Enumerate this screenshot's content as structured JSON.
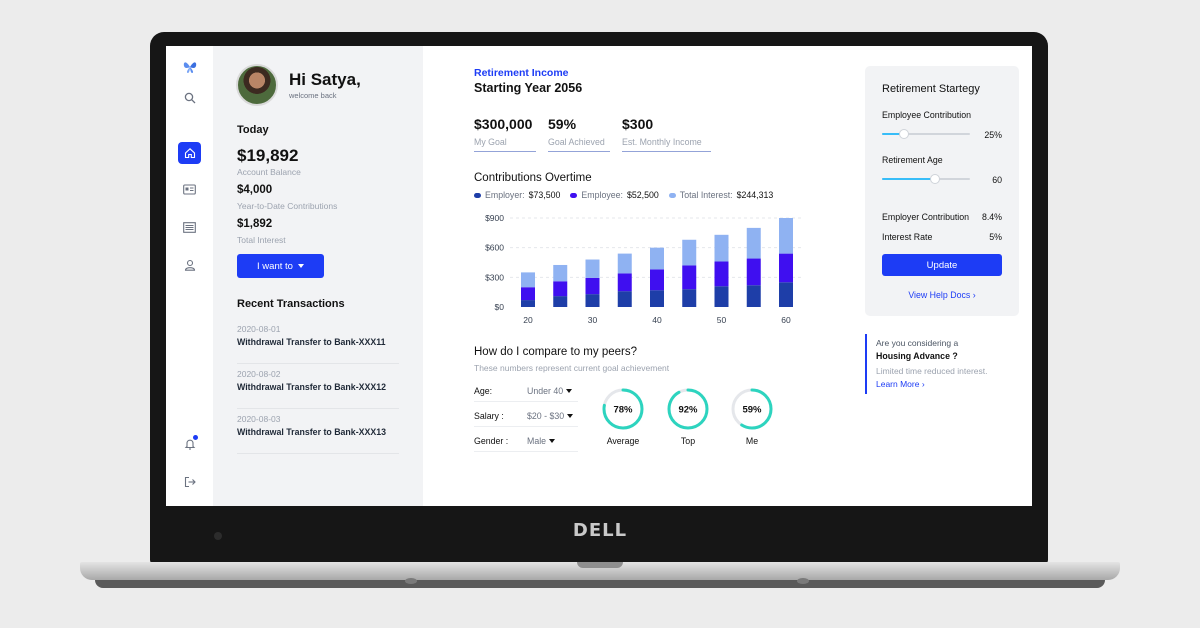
{
  "device": {
    "brand": "DELL"
  },
  "user": {
    "greeting": "Hi Satya,",
    "welcome": "welcome back"
  },
  "today": {
    "heading": "Today",
    "balance": "$19,892",
    "balance_label": "Account Balance",
    "ytd": "$4,000",
    "ytd_label": "Year-to-Date Contributions",
    "interest": "$1,892",
    "interest_label": "Total Interest"
  },
  "actions": {
    "i_want_to": "I want to"
  },
  "transactions": {
    "heading": "Recent Transactions",
    "items": [
      {
        "date": "2020-08-01",
        "desc": "Withdrawal Transfer to Bank-XXX11"
      },
      {
        "date": "2020-08-02",
        "desc": "Withdrawal Transfer to Bank-XXX12"
      },
      {
        "date": "2020-08-03",
        "desc": "Withdrawal Transfer to Bank-XXX13"
      }
    ]
  },
  "retirement": {
    "label": "Retirement Income",
    "starting_year": "Starting Year 2056",
    "stats": [
      {
        "value": "$300,000",
        "label": "My Goal"
      },
      {
        "value": "59%",
        "label": "Goal Achieved"
      },
      {
        "value": "$300",
        "label": "Est. Monthly Income"
      }
    ]
  },
  "contributions": {
    "title": "Contributions Overtime",
    "legend": [
      {
        "name": "Employer:",
        "value": "$73,500"
      },
      {
        "name": "Employee:",
        "value": "$52,500"
      },
      {
        "name": "Total Interest:",
        "value": "$244,313"
      }
    ]
  },
  "chart_data": {
    "type": "bar",
    "stacked": true,
    "x": [
      20,
      25,
      30,
      35,
      40,
      45,
      50,
      55,
      60
    ],
    "x_tick_labels": [
      "20",
      "30",
      "40",
      "50",
      "60"
    ],
    "series": [
      {
        "name": "Employer",
        "values": [
          70,
          110,
          130,
          160,
          170,
          180,
          210,
          220,
          250
        ]
      },
      {
        "name": "Employee",
        "values": [
          130,
          150,
          165,
          180,
          210,
          240,
          250,
          270,
          290
        ]
      },
      {
        "name": "Total Interest",
        "values": [
          150,
          165,
          185,
          200,
          220,
          260,
          270,
          310,
          360
        ]
      }
    ],
    "y_tick_labels": [
      "$0",
      "$300",
      "$600",
      "$900"
    ],
    "ylim": [
      0,
      900
    ],
    "grid": true,
    "colors": [
      "#1e3ea8",
      "#3f0ff0",
      "#8fb2f2"
    ]
  },
  "peers": {
    "title": "How do I compare to my peers?",
    "subtitle": "These numbers represent current goal achievement",
    "filters": [
      {
        "label": "Age:",
        "value": "Under 40"
      },
      {
        "label": "Salary :",
        "value": "$20 - $30"
      },
      {
        "label": "Gender :",
        "value": "Male"
      }
    ],
    "rings": [
      {
        "value": 78,
        "text": "78%",
        "label": "Average"
      },
      {
        "value": 92,
        "text": "92%",
        "label": "Top"
      },
      {
        "value": 59,
        "text": "59%",
        "label": "Me"
      }
    ],
    "ring_color": "#2dd4bf"
  },
  "strategy": {
    "title": "Retirement Startegy",
    "employee_contribution_label": "Employee Contribution",
    "employee_contribution_value": "25%",
    "employee_contribution_level": 0.25,
    "retirement_age_label": "Retirement Age",
    "retirement_age_value": "60",
    "retirement_age_level": 0.6,
    "employer_contribution_label": "Employer Contribution",
    "employer_contribution_value": "8.4%",
    "interest_rate_label": "Interest Rate",
    "interest_rate_value": "5%",
    "update_label": "Update",
    "help_label": "View Help Docs"
  },
  "housing": {
    "question": "Are you considering a",
    "title": "Housing Advance ?",
    "desc": "Limited time reduced interest.",
    "link": "Learn More"
  },
  "colors": {
    "accent": "#1d3cf5",
    "panel": "#f2f3f5"
  }
}
